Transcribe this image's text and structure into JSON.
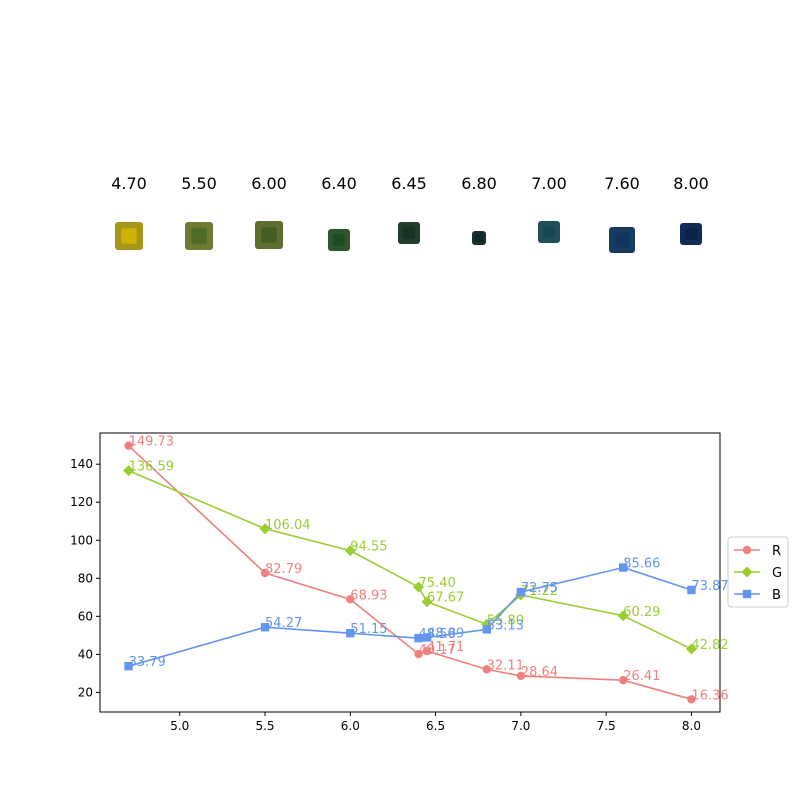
{
  "samples": {
    "labels": [
      "4.70",
      "5.50",
      "6.00",
      "6.40",
      "6.45",
      "6.80",
      "7.00",
      "7.60",
      "8.00"
    ],
    "swatch_colors": [
      "#a8951c",
      "#6e7a34",
      "#5d6e2e",
      "#2c5730",
      "#1f3d2a",
      "#17302e",
      "#1f4f5a",
      "#163c63",
      "#0f2c55"
    ],
    "swatch_inner_colors": [
      "#d4b800",
      "#4a6a24",
      "#3e5a20",
      "#1c4a22",
      "#163022",
      "#10252a",
      "#174452",
      "#103258",
      "#0b2248"
    ]
  },
  "chart_data": {
    "type": "line",
    "title": "",
    "xlabel": "",
    "ylabel": "",
    "x": [
      4.7,
      5.5,
      6.0,
      6.4,
      6.45,
      6.8,
      7.0,
      7.6,
      8.0
    ],
    "xlim": [
      4.5325,
      8.1675
    ],
    "ylim": [
      9.69,
      156.4
    ],
    "xticks": [
      5.0,
      5.5,
      6.0,
      6.5,
      7.0,
      7.5,
      8.0
    ],
    "xtick_labels": [
      "5.0",
      "5.5",
      "6.0",
      "6.5",
      "7.0",
      "7.5",
      "8.0"
    ],
    "yticks": [
      20,
      40,
      60,
      80,
      100,
      120,
      140
    ],
    "ytick_labels": [
      "20",
      "40",
      "60",
      "80",
      "100",
      "120",
      "140"
    ],
    "grid": false,
    "legend_position": "right",
    "series": [
      {
        "name": "R",
        "color": "#f08080",
        "marker": "circle",
        "values": [
          149.73,
          82.79,
          68.93,
          40.17,
          41.71,
          32.11,
          28.64,
          26.41,
          16.36
        ],
        "labels": [
          "149.73",
          "82.79",
          "68.93",
          "40.17",
          "41.71",
          "32.11",
          "28.64",
          "26.41",
          "16.36"
        ]
      },
      {
        "name": "G",
        "color": "#9acd32",
        "marker": "diamond",
        "values": [
          136.59,
          106.04,
          94.55,
          75.4,
          67.67,
          55.8,
          71.22,
          60.29,
          42.82
        ],
        "labels": [
          "136.59",
          "106.04",
          "94.55",
          "75.40",
          "67.67",
          "55.80",
          "71.22",
          "60.29",
          "42.82"
        ]
      },
      {
        "name": "B",
        "color": "#6495ed",
        "marker": "square",
        "values": [
          33.79,
          54.27,
          51.15,
          48.5,
          48.89,
          53.13,
          72.75,
          85.66,
          73.87
        ],
        "labels": [
          "33.79",
          "54.27",
          "51.15",
          "48.50",
          "48.89",
          "53.13",
          "72.75",
          "85.66",
          "73.87"
        ]
      }
    ]
  }
}
